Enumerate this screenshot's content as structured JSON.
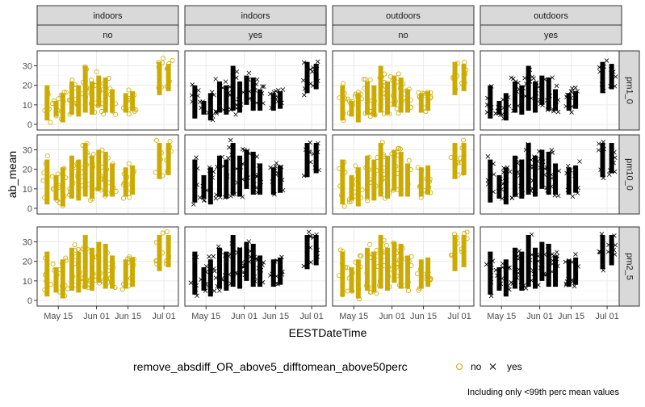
{
  "chart_data": {
    "type": "scatter",
    "title": "",
    "xlabel": "EESTDateTime",
    "ylabel": "ab_mean",
    "x_ticks": [
      "May 15",
      "Jun 01",
      "Jun 15",
      "Jul 01"
    ],
    "y_ticks": [
      0,
      10,
      20,
      30
    ],
    "ylim": [
      0,
      36
    ],
    "grid": true,
    "col_strips_top": [
      "indoors",
      "indoors",
      "outdoors",
      "outdoors"
    ],
    "col_strips_bottom": [
      "no",
      "yes",
      "no",
      "yes"
    ],
    "row_strips": [
      "pm1_0",
      "pm10_0",
      "pm2_5"
    ],
    "legend": {
      "position": "bottom",
      "title": "remove_absdiff_OR_above5_difftomean_above50perc",
      "entries": [
        {
          "label": "no",
          "shape": "open-circle",
          "color": "#ccab00"
        },
        {
          "label": "yes",
          "shape": "cross",
          "color": "#000000"
        }
      ]
    },
    "caption": "Including only <99th perc mean values",
    "series_colors": {
      "no": "#ccab00",
      "yes": "#000000"
    },
    "clusters": [
      {
        "x": "May 10",
        "range": [
          1,
          22
        ]
      },
      {
        "x": "May 14",
        "range": [
          3,
          14
        ]
      },
      {
        "x": "May 17",
        "range": [
          0,
          18
        ]
      },
      {
        "x": "May 21",
        "range": [
          4,
          24
        ]
      },
      {
        "x": "May 24",
        "range": [
          3,
          22
        ]
      },
      {
        "x": "May 27",
        "range": [
          5,
          32
        ]
      },
      {
        "x": "May 30",
        "range": [
          4,
          24
        ]
      },
      {
        "x": "Jun 02",
        "range": [
          8,
          27
        ]
      },
      {
        "x": "Jun 05",
        "range": [
          5,
          26
        ]
      },
      {
        "x": "Jun 08",
        "range": [
          5,
          20
        ]
      },
      {
        "x": "Jun 14",
        "range": [
          5,
          18
        ]
      },
      {
        "x": "Jun 17",
        "range": [
          6,
          19
        ]
      },
      {
        "x": "Jun 29",
        "range": [
          14,
          34
        ]
      },
      {
        "x": "Jul 03",
        "range": [
          16,
          33
        ]
      }
    ]
  }
}
